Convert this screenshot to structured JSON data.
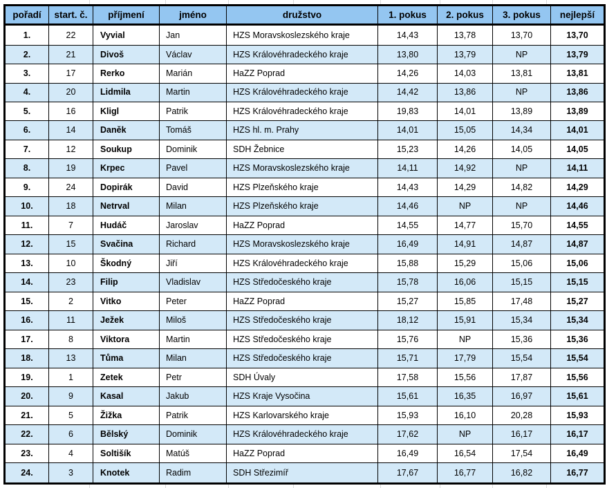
{
  "colors": {
    "header_bg": "#94C6F1",
    "row_alt_bg": "#D3E9F8",
    "row_bg": "#FFFFFF",
    "border": "#000000"
  },
  "table": {
    "columns": [
      "pořadí",
      "start. č.",
      "příjmení",
      "jméno",
      "družstvo",
      "1. pokus",
      "2. pokus",
      "3. pokus",
      "nejlepší"
    ],
    "rows": [
      {
        "rank": "1.",
        "start": "22",
        "surname": "Vyvial",
        "first_name": "Jan",
        "team": "HZS Moravskoslezského kraje",
        "attempt1": "14,43",
        "attempt2": "13,78",
        "attempt3": "13,70",
        "best": "13,70"
      },
      {
        "rank": "2.",
        "start": "21",
        "surname": "Divoš",
        "first_name": "Václav",
        "team": "HZS Královéhradeckého kraje",
        "attempt1": "13,80",
        "attempt2": "13,79",
        "attempt3": "NP",
        "best": "13,79"
      },
      {
        "rank": "3.",
        "start": "17",
        "surname": "Rerko",
        "first_name": "Marián",
        "team": "HaZZ Poprad",
        "attempt1": "14,26",
        "attempt2": "14,03",
        "attempt3": "13,81",
        "best": "13,81"
      },
      {
        "rank": "4.",
        "start": "20",
        "surname": "Lidmila",
        "first_name": "Martin",
        "team": "HZS Královéhradeckého kraje",
        "attempt1": "14,42",
        "attempt2": "13,86",
        "attempt3": "NP",
        "best": "13,86"
      },
      {
        "rank": "5.",
        "start": "16",
        "surname": "Kligl",
        "first_name": "Patrik",
        "team": "HZS Královéhradeckého kraje",
        "attempt1": "19,83",
        "attempt2": "14,01",
        "attempt3": "13,89",
        "best": "13,89"
      },
      {
        "rank": "6.",
        "start": "14",
        "surname": "Daněk",
        "first_name": "Tomáš",
        "team": "HZS hl. m. Prahy",
        "attempt1": "14,01",
        "attempt2": "15,05",
        "attempt3": "14,34",
        "best": "14,01"
      },
      {
        "rank": "7.",
        "start": "12",
        "surname": "Soukup",
        "first_name": "Dominik",
        "team": "SDH Žebnice",
        "attempt1": "15,23",
        "attempt2": "14,26",
        "attempt3": "14,05",
        "best": "14,05"
      },
      {
        "rank": "8.",
        "start": "19",
        "surname": "Krpec",
        "first_name": "Pavel",
        "team": "HZS Moravskoslezského kraje",
        "attempt1": "14,11",
        "attempt2": "14,92",
        "attempt3": "NP",
        "best": "14,11"
      },
      {
        "rank": "9.",
        "start": "24",
        "surname": "Dopirák",
        "first_name": "David",
        "team": "HZS Plzeňského kraje",
        "attempt1": "14,43",
        "attempt2": "14,29",
        "attempt3": "14,82",
        "best": "14,29"
      },
      {
        "rank": "10.",
        "start": "18",
        "surname": "Netrval",
        "first_name": "Milan",
        "team": "HZS Plzeňského kraje",
        "attempt1": "14,46",
        "attempt2": "NP",
        "attempt3": "NP",
        "best": "14,46"
      },
      {
        "rank": "11.",
        "start": "7",
        "surname": "Hudáč",
        "first_name": "Jaroslav",
        "team": "HaZZ Poprad",
        "attempt1": "14,55",
        "attempt2": "14,77",
        "attempt3": "15,70",
        "best": "14,55"
      },
      {
        "rank": "12.",
        "start": "15",
        "surname": "Svačina",
        "first_name": "Richard",
        "team": "HZS Moravskoslezského kraje",
        "attempt1": "16,49",
        "attempt2": "14,91",
        "attempt3": "14,87",
        "best": "14,87"
      },
      {
        "rank": "13.",
        "start": "10",
        "surname": "Škodný",
        "first_name": "Jiří",
        "team": "HZS Královéhradeckého kraje",
        "attempt1": "15,88",
        "attempt2": "15,29",
        "attempt3": "15,06",
        "best": "15,06"
      },
      {
        "rank": "14.",
        "start": "23",
        "surname": "Filip",
        "first_name": "Vladislav",
        "team": "HZS Středočeského kraje",
        "attempt1": "15,78",
        "attempt2": "16,06",
        "attempt3": "15,15",
        "best": "15,15"
      },
      {
        "rank": "15.",
        "start": "2",
        "surname": "Vitko",
        "first_name": "Peter",
        "team": "HaZZ Poprad",
        "attempt1": "15,27",
        "attempt2": "15,85",
        "attempt3": "17,48",
        "best": "15,27"
      },
      {
        "rank": "16.",
        "start": "11",
        "surname": "Ježek",
        "first_name": "Miloš",
        "team": "HZS Středočeského kraje",
        "attempt1": "18,12",
        "attempt2": "15,91",
        "attempt3": "15,34",
        "best": "15,34"
      },
      {
        "rank": "17.",
        "start": "8",
        "surname": "Viktora",
        "first_name": "Martin",
        "team": "HZS Středočeského kraje",
        "attempt1": "15,76",
        "attempt2": "NP",
        "attempt3": "15,36",
        "best": "15,36"
      },
      {
        "rank": "18.",
        "start": "13",
        "surname": "Tůma",
        "first_name": "Milan",
        "team": "HZS Středočeského kraje",
        "attempt1": "15,71",
        "attempt2": "17,79",
        "attempt3": "15,54",
        "best": "15,54"
      },
      {
        "rank": "19.",
        "start": "1",
        "surname": "Zetek",
        "first_name": "Petr",
        "team": "SDH Úvaly",
        "attempt1": "17,58",
        "attempt2": "15,56",
        "attempt3": "17,87",
        "best": "15,56"
      },
      {
        "rank": "20.",
        "start": "9",
        "surname": "Kasal",
        "first_name": "Jakub",
        "team": "HZS Kraje Vysočina",
        "attempt1": "15,61",
        "attempt2": "16,35",
        "attempt3": "16,97",
        "best": "15,61"
      },
      {
        "rank": "21.",
        "start": "5",
        "surname": "Žižka",
        "first_name": "Patrik",
        "team": "HZS Karlovarského kraje",
        "attempt1": "15,93",
        "attempt2": "16,10",
        "attempt3": "20,28",
        "best": "15,93"
      },
      {
        "rank": "22.",
        "start": "6",
        "surname": "Bělský",
        "first_name": "Dominik",
        "team": "HZS Královéhradeckého kraje",
        "attempt1": "17,62",
        "attempt2": "NP",
        "attempt3": "16,17",
        "best": "16,17"
      },
      {
        "rank": "23.",
        "start": "4",
        "surname": "Soltišík",
        "first_name": "Matúš",
        "team": "HaZZ Poprad",
        "attempt1": "16,49",
        "attempt2": "16,54",
        "attempt3": "17,54",
        "best": "16,49"
      },
      {
        "rank": "24.",
        "start": "3",
        "surname": "Knotek",
        "first_name": "Radim",
        "team": "SDH Střezimíř",
        "attempt1": "17,67",
        "attempt2": "16,77",
        "attempt3": "16,82",
        "best": "16,77"
      }
    ]
  }
}
